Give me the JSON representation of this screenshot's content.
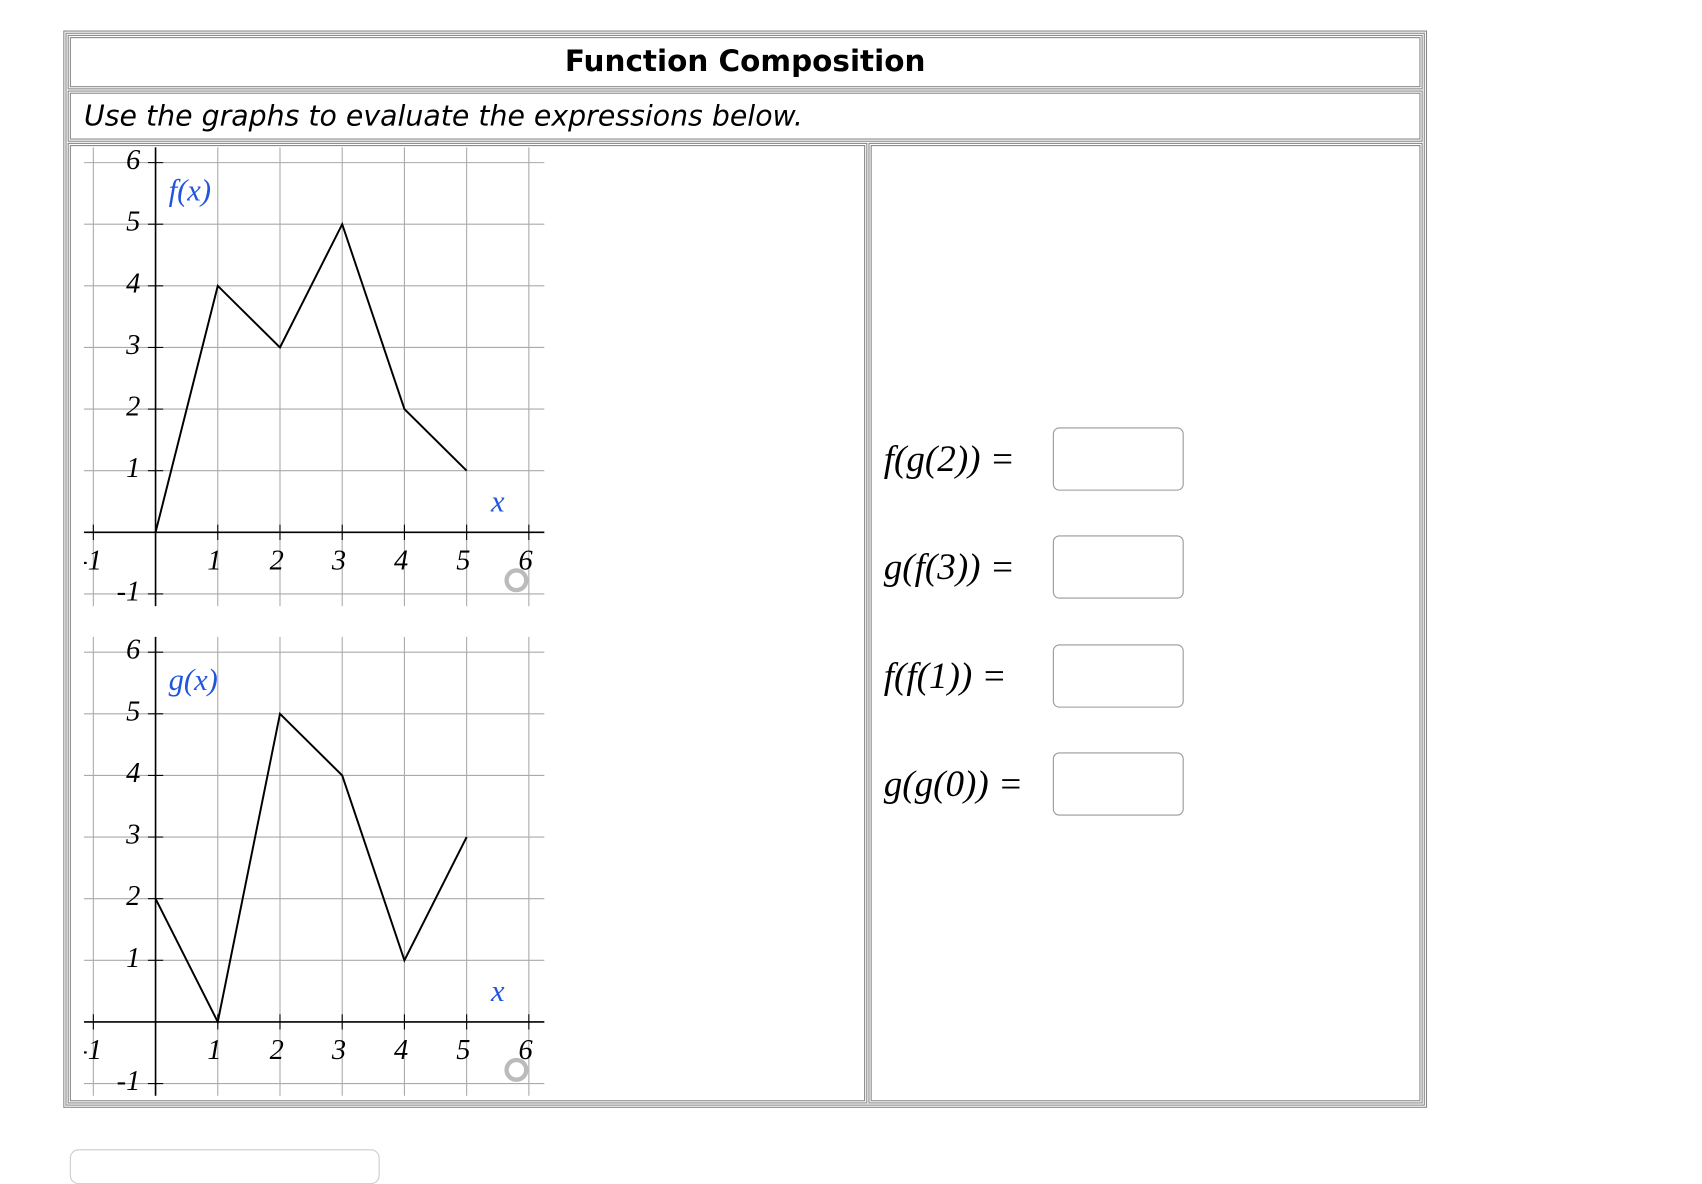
{
  "header": {
    "title": "Function Composition"
  },
  "instruction": "Use the graphs to evaluate the expressions below.",
  "graphs": [
    {
      "type": "line",
      "function_label": "f(x)",
      "x_axis_label": "x",
      "x": [
        0,
        1,
        2,
        3,
        4,
        5
      ],
      "y": [
        0,
        4,
        3,
        5,
        2,
        1
      ],
      "xlim": [
        -1.15,
        6.25
      ],
      "ylim": [
        -1.2,
        6.25
      ],
      "xticks": [
        -1,
        1,
        2,
        3,
        4,
        5,
        6
      ],
      "yticks": [
        -1,
        1,
        2,
        3,
        4,
        5,
        6
      ],
      "grid": true,
      "color": "#000000"
    },
    {
      "type": "line",
      "function_label": "g(x)",
      "x_axis_label": "x",
      "x": [
        0,
        1,
        2,
        3,
        4,
        5
      ],
      "y": [
        2,
        0,
        5,
        4,
        1,
        3
      ],
      "xlim": [
        -1.15,
        6.25
      ],
      "ylim": [
        -1.2,
        6.25
      ],
      "xticks": [
        -1,
        1,
        2,
        3,
        4,
        5,
        6
      ],
      "yticks": [
        -1,
        1,
        2,
        3,
        4,
        5,
        6
      ],
      "grid": true,
      "color": "#000000"
    }
  ],
  "expressions": [
    "f(g(2)) =",
    "g(f(3)) =",
    "f(f(1)) =",
    "g(g(0)) ="
  ]
}
